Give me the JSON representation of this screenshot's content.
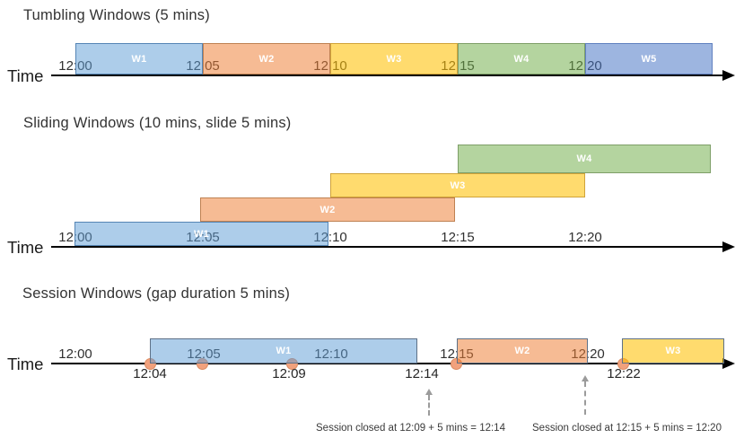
{
  "colors": {
    "window_styles": {
      "blue": {
        "fill": "#5B9BD5",
        "fill_alpha": 0.5,
        "border": "#5585B5"
      },
      "orange": {
        "fill": "#ED7D31",
        "fill_alpha": 0.52,
        "border": "#BF8152"
      },
      "yellow": {
        "fill": "#FFC000",
        "fill_alpha": 0.57,
        "border": "#D0A339"
      },
      "green": {
        "fill": "#70AD47",
        "fill_alpha": 0.52,
        "border": "#7E9F68"
      },
      "blue_dark": {
        "fill": "#4472C4",
        "fill_alpha": 0.52,
        "border": "#6080C0"
      }
    },
    "session_window_border": "#5E7187",
    "event_dot_fill": "#F1A17D",
    "event_dot_border": "#DB8A5F",
    "axis_color": "#000000",
    "annotation_arrow_color": "#9B9B9B",
    "text_color": "#303030"
  },
  "sections": [
    {
      "title": "Tumbling Windows (5 mins)",
      "axis_label": "Time",
      "ticks": [
        "12:00",
        "12:05",
        "12:10",
        "12:15",
        "12:20"
      ],
      "windows": [
        {
          "label": "W1",
          "style": "blue",
          "start": "12:00",
          "end": "12:05"
        },
        {
          "label": "W2",
          "style": "orange",
          "start": "12:05",
          "end": "12:10"
        },
        {
          "label": "W3",
          "style": "yellow",
          "start": "12:10",
          "end": "12:15"
        },
        {
          "label": "W4",
          "style": "green",
          "start": "12:15",
          "end": "12:20"
        },
        {
          "label": "W5",
          "style": "blue_dark",
          "start": "12:20",
          "end": "12:25"
        }
      ]
    },
    {
      "title": "Sliding Windows (10 mins, slide 5 mins)",
      "axis_label": "Time",
      "ticks": [
        "12:00",
        "12:05",
        "12:10",
        "12:15",
        "12:20"
      ],
      "windows": [
        {
          "label": "W1",
          "style": "blue",
          "start": "12:00",
          "end": "12:10"
        },
        {
          "label": "W2",
          "style": "orange",
          "start": "12:05",
          "end": "12:15"
        },
        {
          "label": "W3",
          "style": "yellow",
          "start": "12:10",
          "end": "12:20"
        },
        {
          "label": "W4",
          "style": "green",
          "start": "12:15",
          "end": "12:25"
        }
      ]
    },
    {
      "title": "Session Windows (gap duration 5 mins)",
      "axis_label": "Time",
      "ticks": [
        "12:00",
        "12:05",
        "12:10",
        "12:15",
        "12:20"
      ],
      "windows": [
        {
          "label": "W1",
          "style": "blue"
        },
        {
          "label": "W2",
          "style": "orange"
        },
        {
          "label": "W3",
          "style": "yellow"
        }
      ],
      "event_labels": [
        "12:04",
        "12:09",
        "12:14",
        "12:22"
      ],
      "annotations": [
        "Session closed at 12:09 + 5 mins = 12:14",
        "Session closed at 12:15 + 5 mins = 12:20"
      ]
    }
  ]
}
